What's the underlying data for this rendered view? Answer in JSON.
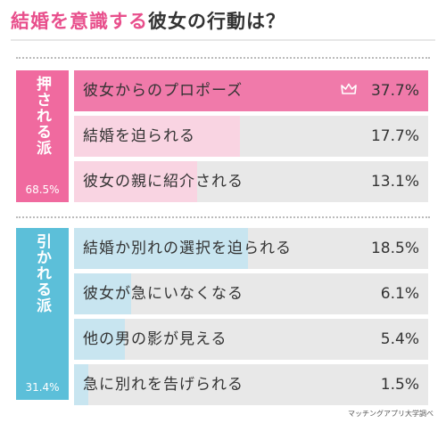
{
  "title_accent": "結婚を意識する",
  "title_rest": "彼女の行動は？",
  "credit": "マッチングアプリ大学調べ",
  "colors": {
    "pink_label": "#f06a9f",
    "pink_fill": "#f07aaa",
    "pink_light": "#f9d4e2",
    "blue_label": "#5cbfd9",
    "blue_light": "#c8e5f0",
    "bg_bar": "#e8e8e8"
  },
  "chart_data": {
    "type": "bar",
    "title": "結婚を意識する彼女の行動は？",
    "groups": [
      {
        "name": "押される派",
        "total": "68.5%",
        "items": [
          {
            "label": "彼女からのプロポーズ",
            "value": 37.7,
            "value_text": "37.7%",
            "top": true
          },
          {
            "label": "結婚を迫られる",
            "value": 17.7,
            "value_text": "17.7%"
          },
          {
            "label": "彼女の親に紹介される",
            "value": 13.1,
            "value_text": "13.1%"
          }
        ]
      },
      {
        "name": "引かれる派",
        "total": "31.4%",
        "items": [
          {
            "label": "結婚か別れの選択を迫られる",
            "value": 18.5,
            "value_text": "18.5%"
          },
          {
            "label": "彼女が急にいなくなる",
            "value": 6.1,
            "value_text": "6.1%"
          },
          {
            "label": "他の男の影が見える",
            "value": 5.4,
            "value_text": "5.4%"
          },
          {
            "label": "急に別れを告げられる",
            "value": 1.5,
            "value_text": "1.5%"
          }
        ]
      }
    ]
  }
}
